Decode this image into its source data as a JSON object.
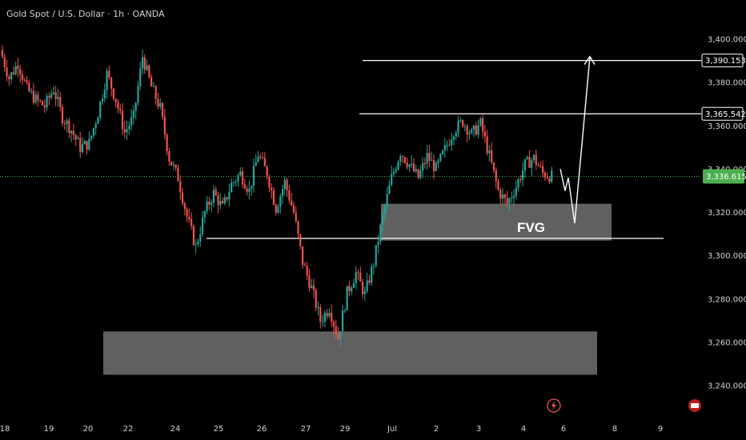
{
  "header": {
    "symbol_title": "Gold Spot / U.S. Dollar · 1h · OANDA"
  },
  "colors": {
    "background": "#000000",
    "up": "#26a69a",
    "down": "#ef5350",
    "current_price_label": "#4caf50",
    "zone_fill": "#787878",
    "annotation": "#ffffff",
    "axis_text": "#d1d4dc"
  },
  "icons": {
    "bottom_right_a": "lightning-icon",
    "bottom_right_b": "flag-badge-icon"
  },
  "chart_data": {
    "type": "candlestick",
    "title": "Gold Spot / U.S. Dollar · 1h · OANDA",
    "ylim": [
      3232,
      3408
    ],
    "y_ticks": [
      "3,400.000",
      "3,380.000",
      "3,360.000",
      "3,340.000",
      "3,320.000",
      "3,300.000",
      "3,280.000",
      "3,260.000",
      "3,240.000"
    ],
    "y_tick_values": [
      3400,
      3380,
      3360,
      3340,
      3320,
      3300,
      3280,
      3260,
      3240
    ],
    "x_ticks": [
      "18",
      "19",
      "20",
      "22",
      "24",
      "25",
      "26",
      "27",
      "29",
      "Jul",
      "2",
      "3",
      "4",
      "6",
      "8",
      "9"
    ],
    "price_labels": [
      {
        "text": "3,390.153",
        "value": 3390.153,
        "kind": "level"
      },
      {
        "text": "3,365.542",
        "value": 3365.542,
        "kind": "level"
      },
      {
        "text": "3,336.615",
        "value": 3336.615,
        "kind": "current"
      }
    ],
    "zones": [
      {
        "label": "FVG",
        "top": 3324,
        "bottom": 3307
      },
      {
        "label": "",
        "top": 3265,
        "bottom": 3245
      }
    ],
    "horizontal_lines": [
      3390.153,
      3365.542,
      3308
    ],
    "price_path_closes": [
      3395,
      3382,
      3389,
      3377,
      3372,
      3369,
      3377,
      3364,
      3358,
      3350,
      3352,
      3366,
      3384,
      3372,
      3357,
      3364,
      3392,
      3378,
      3368,
      3345,
      3336,
      3318,
      3304,
      3320,
      3329,
      3322,
      3333,
      3338,
      3330,
      3347,
      3338,
      3322,
      3334,
      3320,
      3297,
      3285,
      3270,
      3276,
      3262,
      3283,
      3292,
      3282,
      3297,
      3318,
      3336,
      3348,
      3342,
      3336,
      3346,
      3340,
      3349,
      3358,
      3362,
      3356,
      3361,
      3346,
      3330,
      3324,
      3332,
      3342,
      3345,
      3338,
      3336.6
    ],
    "projection_path": [
      3340,
      3330,
      3336,
      3315,
      3392
    ]
  }
}
